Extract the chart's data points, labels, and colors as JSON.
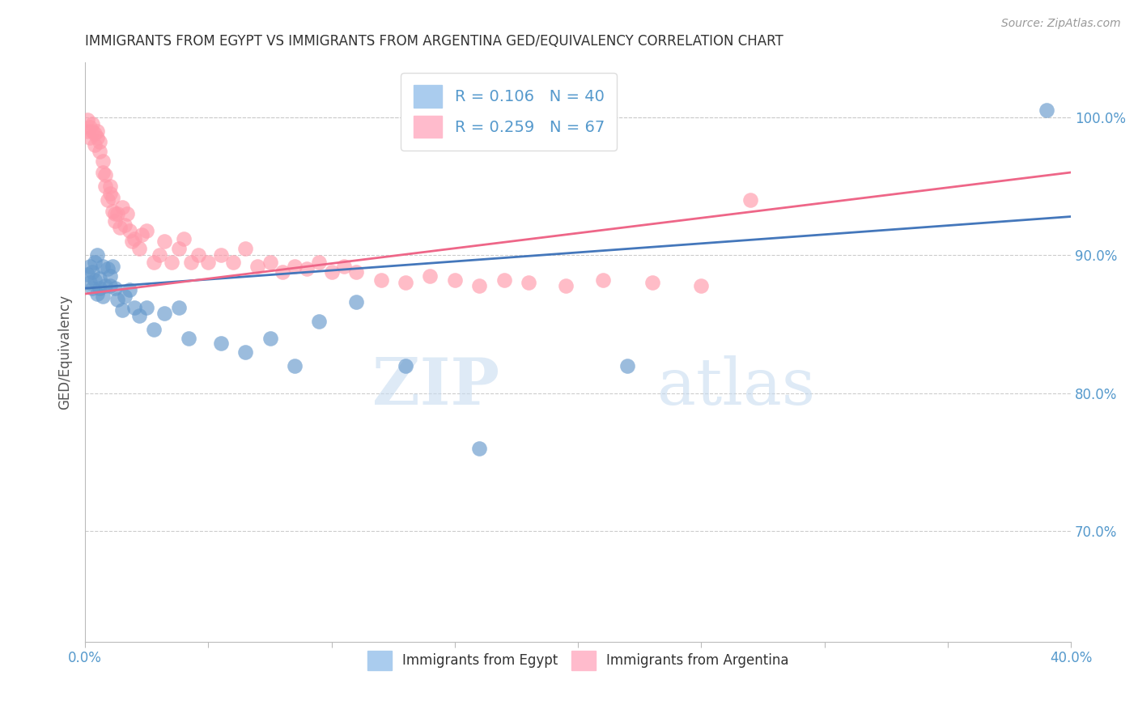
{
  "title": "IMMIGRANTS FROM EGYPT VS IMMIGRANTS FROM ARGENTINA GED/EQUIVALENCY CORRELATION CHART",
  "source": "Source: ZipAtlas.com",
  "ylabel": "GED/Equivalency",
  "xlim": [
    0.0,
    0.4
  ],
  "ylim": [
    0.62,
    1.04
  ],
  "egypt_color": "#6699CC",
  "argentina_color": "#FF99AA",
  "egypt_line_color": "#4477BB",
  "argentina_line_color": "#EE6688",
  "egypt_R": 0.106,
  "egypt_N": 40,
  "argentina_R": 0.259,
  "argentina_N": 67,
  "legend_label_egypt": "Immigrants from Egypt",
  "legend_label_argentina": "Immigrants from Argentina",
  "title_color": "#333333",
  "axis_color": "#5599CC",
  "watermark_zip": "ZIP",
  "watermark_atlas": "atlas",
  "egypt_x": [
    0.001,
    0.002,
    0.002,
    0.003,
    0.003,
    0.004,
    0.004,
    0.005,
    0.005,
    0.006,
    0.006,
    0.007,
    0.007,
    0.008,
    0.009,
    0.01,
    0.01,
    0.011,
    0.012,
    0.013,
    0.015,
    0.016,
    0.018,
    0.02,
    0.022,
    0.025,
    0.028,
    0.032,
    0.038,
    0.042,
    0.055,
    0.065,
    0.075,
    0.085,
    0.095,
    0.11,
    0.13,
    0.16,
    0.22,
    0.39
  ],
  "egypt_y": [
    0.886,
    0.88,
    0.892,
    0.876,
    0.888,
    0.895,
    0.882,
    0.9,
    0.872,
    0.883,
    0.876,
    0.892,
    0.87,
    0.878,
    0.89,
    0.885,
    0.878,
    0.892,
    0.876,
    0.868,
    0.86,
    0.87,
    0.875,
    0.862,
    0.856,
    0.862,
    0.846,
    0.858,
    0.862,
    0.84,
    0.836,
    0.83,
    0.84,
    0.82,
    0.852,
    0.866,
    0.82,
    0.76,
    0.82,
    1.005
  ],
  "argentina_x": [
    0.001,
    0.001,
    0.002,
    0.002,
    0.003,
    0.003,
    0.004,
    0.004,
    0.005,
    0.005,
    0.006,
    0.006,
    0.007,
    0.007,
    0.008,
    0.008,
    0.009,
    0.01,
    0.01,
    0.011,
    0.011,
    0.012,
    0.012,
    0.013,
    0.014,
    0.015,
    0.016,
    0.017,
    0.018,
    0.019,
    0.02,
    0.022,
    0.023,
    0.025,
    0.028,
    0.03,
    0.032,
    0.035,
    0.038,
    0.04,
    0.043,
    0.046,
    0.05,
    0.055,
    0.06,
    0.065,
    0.07,
    0.075,
    0.08,
    0.085,
    0.09,
    0.095,
    0.1,
    0.105,
    0.11,
    0.12,
    0.13,
    0.14,
    0.15,
    0.16,
    0.17,
    0.18,
    0.195,
    0.21,
    0.23,
    0.25,
    0.27
  ],
  "argentina_y": [
    0.99,
    0.998,
    0.985,
    0.993,
    0.99,
    0.995,
    0.988,
    0.98,
    0.99,
    0.985,
    0.975,
    0.982,
    0.968,
    0.96,
    0.958,
    0.95,
    0.94,
    0.95,
    0.945,
    0.932,
    0.942,
    0.93,
    0.925,
    0.93,
    0.92,
    0.935,
    0.922,
    0.93,
    0.918,
    0.91,
    0.912,
    0.905,
    0.915,
    0.918,
    0.895,
    0.9,
    0.91,
    0.895,
    0.905,
    0.912,
    0.895,
    0.9,
    0.895,
    0.9,
    0.895,
    0.905,
    0.892,
    0.895,
    0.888,
    0.892,
    0.89,
    0.895,
    0.888,
    0.892,
    0.888,
    0.882,
    0.88,
    0.885,
    0.882,
    0.878,
    0.882,
    0.88,
    0.878,
    0.882,
    0.88,
    0.878,
    0.94
  ]
}
